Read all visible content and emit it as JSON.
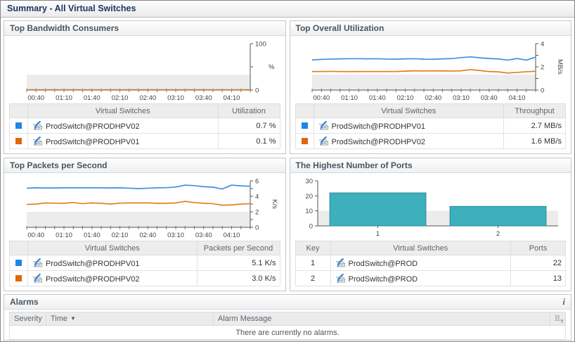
{
  "header": {
    "title": "Summary - All Virtual Switches"
  },
  "panels": {
    "bandwidth": {
      "title": "Top Bandwidth Consumers",
      "table": {
        "columns": [
          "",
          "Virtual Switches",
          "Utilization"
        ],
        "rows": [
          {
            "key_color": "#1e87e5",
            "name": "ProdSwitch@PRODHPV02",
            "value": "0.7 %"
          },
          {
            "key_color": "#e2660a",
            "name": "ProdSwitch@PRODHPV01",
            "value": "0.1 %"
          }
        ]
      }
    },
    "utilization": {
      "title": "Top Overall Utilization",
      "table": {
        "columns": [
          "",
          "Virtual Switches",
          "Throughput"
        ],
        "rows": [
          {
            "key_color": "#1e87e5",
            "name": "ProdSwitch@PRODHPV01",
            "value": "2.7 MB/s"
          },
          {
            "key_color": "#e2660a",
            "name": "ProdSwitch@PRODHPV02",
            "value": "1.6 MB/s"
          }
        ]
      }
    },
    "packets": {
      "title": "Top Packets per Second",
      "table": {
        "columns": [
          "",
          "Virtual Switches",
          "Packets per Second"
        ],
        "rows": [
          {
            "key_color": "#1e87e5",
            "name": "ProdSwitch@PRODHPV01",
            "value": "5.1 K/s"
          },
          {
            "key_color": "#e2660a",
            "name": "ProdSwitch@PRODHPV02",
            "value": "3.0 K/s"
          }
        ]
      }
    },
    "ports": {
      "title": "The Highest Number of Ports",
      "table": {
        "columns": [
          "Key",
          "Virtual Switches",
          "Ports"
        ],
        "rows": [
          {
            "key": "1",
            "name": "ProdSwitch@PROD",
            "value": "22"
          },
          {
            "key": "2",
            "name": "ProdSwitch@PROD",
            "value": "13"
          }
        ]
      }
    }
  },
  "alarms": {
    "title": "Alarms",
    "info_icon": "i",
    "columns": [
      "Severity",
      "Time",
      "Alarm Message"
    ],
    "sort_arrow": "▼",
    "empty_message": "There are currently no alarms."
  },
  "chart_data": [
    {
      "type": "line",
      "title": "Top Bandwidth Consumers",
      "ylabel": "%",
      "unit": "%",
      "unit_rotated": false,
      "ylim": [
        0,
        100
      ],
      "band": [
        0,
        33
      ],
      "y_ticks": [
        {
          "v": 0,
          "l": "0"
        },
        {
          "v": 50,
          "l": ""
        },
        {
          "v": 100,
          "l": "100"
        }
      ],
      "x_range_minutes": [
        30,
        270
      ],
      "x_minor_step": 10,
      "x_major_start": 40,
      "x_major_step": 30,
      "x_tick_labels": [
        "00:40",
        "01:10",
        "01:40",
        "02:10",
        "02:40",
        "03:10",
        "03:40",
        "04:10"
      ],
      "series": [
        {
          "name": "ProdSwitch@PRODHPV02",
          "color": "#3b92e0",
          "values": [
            0.7,
            0.7,
            0.7,
            0.7,
            0.7,
            0.7,
            0.7,
            0.7,
            0.7,
            0.7,
            0.7,
            0.7,
            0.7,
            0.7,
            0.7,
            0.7,
            0.7,
            0.7,
            0.7,
            0.7,
            0.7,
            0.7,
            0.7,
            0.7,
            0.7
          ]
        },
        {
          "name": "ProdSwitch@PRODHPV01",
          "color": "#e0821f",
          "values": [
            0.1,
            0.1,
            0.1,
            0.1,
            0.1,
            0.1,
            0.1,
            0.1,
            0.1,
            0.1,
            0.1,
            0.1,
            0.1,
            0.1,
            0.1,
            0.1,
            0.1,
            0.1,
            0.1,
            0.1,
            0.1,
            0.1,
            0.1,
            0.1,
            0.1
          ]
        }
      ]
    },
    {
      "type": "line",
      "title": "Top Overall Utilization",
      "ylabel": "MB/s",
      "unit": "MB/s",
      "unit_rotated": true,
      "ylim": [
        0,
        4
      ],
      "band": [
        0,
        1.33
      ],
      "y_ticks": [
        {
          "v": 0,
          "l": "0"
        },
        {
          "v": 1,
          "l": ""
        },
        {
          "v": 2,
          "l": "2"
        },
        {
          "v": 3,
          "l": ""
        },
        {
          "v": 4,
          "l": "4"
        }
      ],
      "x_range_minutes": [
        30,
        270
      ],
      "x_minor_step": 10,
      "x_major_start": 40,
      "x_major_step": 30,
      "x_tick_labels": [
        "00:40",
        "01:10",
        "01:40",
        "02:10",
        "02:40",
        "03:10",
        "03:40",
        "04:10"
      ],
      "series": [
        {
          "name": "ProdSwitch@PRODHPV01",
          "color": "#3b92e0",
          "values": [
            2.6,
            2.64,
            2.67,
            2.69,
            2.7,
            2.7,
            2.69,
            2.7,
            2.67,
            2.66,
            2.69,
            2.7,
            2.66,
            2.65,
            2.69,
            2.71,
            2.8,
            2.86,
            2.78,
            2.72,
            2.68,
            2.58,
            2.72,
            2.58,
            2.84
          ]
        },
        {
          "name": "ProdSwitch@PRODHPV02",
          "color": "#e0821f",
          "values": [
            1.6,
            1.6,
            1.61,
            1.6,
            1.59,
            1.6,
            1.6,
            1.6,
            1.6,
            1.6,
            1.63,
            1.66,
            1.64,
            1.66,
            1.65,
            1.64,
            1.66,
            1.76,
            1.68,
            1.6,
            1.57,
            1.47,
            1.52,
            1.58,
            1.62
          ]
        }
      ]
    },
    {
      "type": "line",
      "title": "Top Packets per Second",
      "ylabel": "K/s",
      "unit": "K/s",
      "unit_rotated": true,
      "ylim": [
        0,
        6
      ],
      "band": [
        0,
        2
      ],
      "y_ticks": [
        {
          "v": 0,
          "l": "0"
        },
        {
          "v": 1,
          "l": ""
        },
        {
          "v": 2,
          "l": "2"
        },
        {
          "v": 3,
          "l": ""
        },
        {
          "v": 4,
          "l": "4"
        },
        {
          "v": 5,
          "l": ""
        },
        {
          "v": 6,
          "l": "6"
        }
      ],
      "x_range_minutes": [
        30,
        270
      ],
      "x_minor_step": 10,
      "x_major_start": 40,
      "x_major_step": 30,
      "x_tick_labels": [
        "00:40",
        "01:10",
        "01:40",
        "02:10",
        "02:40",
        "03:10",
        "03:40",
        "04:10"
      ],
      "series": [
        {
          "name": "ProdSwitch@PRODHPV01",
          "color": "#3b92e0",
          "values": [
            5.05,
            5.1,
            5.08,
            5.08,
            5.1,
            5.1,
            5.1,
            5.1,
            5.1,
            5.08,
            5.1,
            5.05,
            5.0,
            5.05,
            5.1,
            5.12,
            5.2,
            5.45,
            5.38,
            5.25,
            5.18,
            4.95,
            5.45,
            5.35,
            5.3
          ]
        },
        {
          "name": "ProdSwitch@PRODHPV02",
          "color": "#e0821f",
          "values": [
            2.95,
            3.0,
            3.15,
            3.12,
            3.1,
            3.2,
            3.05,
            3.15,
            3.1,
            3.0,
            3.12,
            3.15,
            3.15,
            3.15,
            3.1,
            3.1,
            3.15,
            3.35,
            3.2,
            3.1,
            3.05,
            2.85,
            2.9,
            3.0,
            3.05
          ]
        }
      ]
    },
    {
      "type": "bar",
      "title": "The Highest Number of Ports",
      "categories": [
        "1",
        "2"
      ],
      "values": [
        22,
        13
      ],
      "ylim": [
        0,
        30
      ],
      "band": [
        0,
        10
      ],
      "y_ticks": [
        0,
        10,
        20,
        30
      ],
      "bar_color": "#3dafbd",
      "bar_border": "#2d8a98"
    }
  ]
}
